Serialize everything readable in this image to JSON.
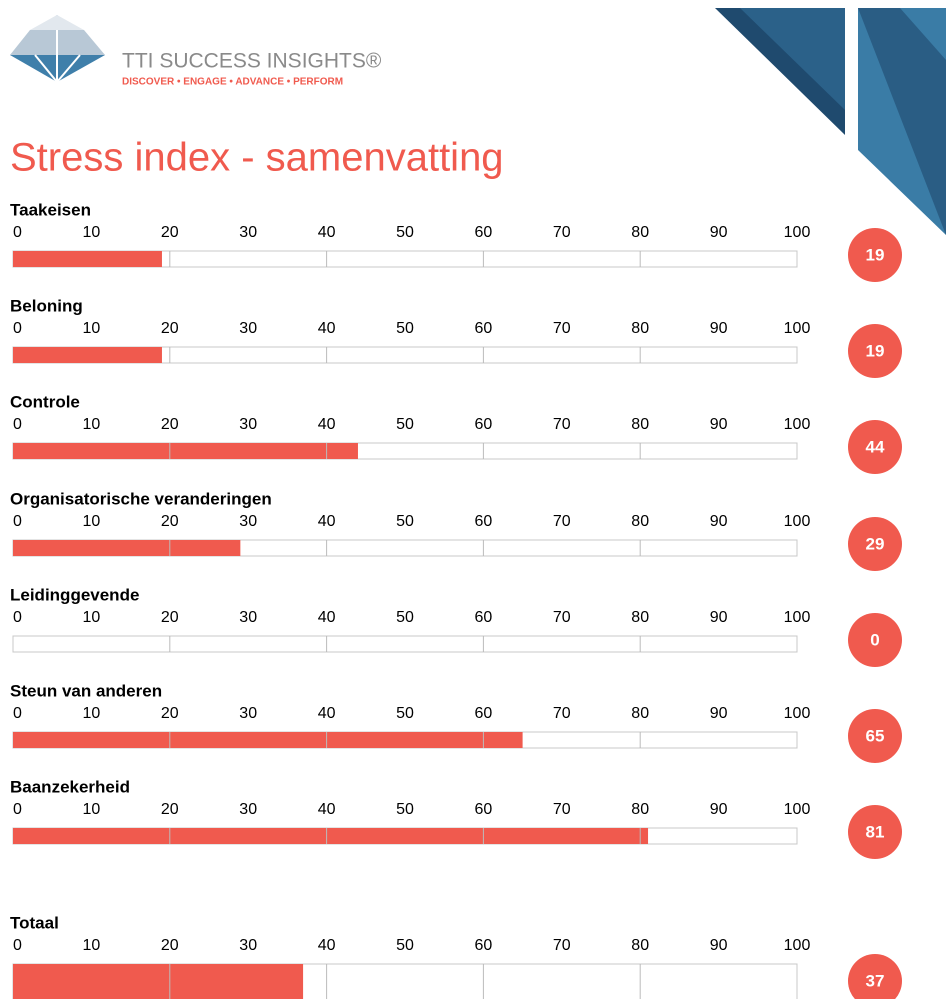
{
  "header": {
    "brand": "TTI SUCCESS INSIGHTS®",
    "tagline": "DISCOVER • ENGAGE • ADVANCE • PERFORM",
    "title": "Stress index - samenvatting"
  },
  "chart_data": [
    {
      "type": "gauge",
      "title": "Taakeisen",
      "values": [
        19
      ],
      "color": "#f05a4e",
      "xlim": [
        0,
        100
      ],
      "xticks": [
        0,
        10,
        20,
        30,
        40,
        50,
        60,
        70,
        80,
        90,
        100
      ],
      "xgrid": [
        20,
        40,
        60,
        80
      ]
    },
    {
      "type": "gauge",
      "title": "Beloning",
      "values": [
        19
      ],
      "color": "#f05a4e",
      "xlim": [
        0,
        100
      ],
      "xticks": [
        0,
        10,
        20,
        30,
        40,
        50,
        60,
        70,
        80,
        90,
        100
      ],
      "xgrid": [
        20,
        40,
        60,
        80
      ]
    },
    {
      "type": "gauge",
      "title": "Controle",
      "values": [
        44
      ],
      "color": "#f05a4e",
      "xlim": [
        0,
        100
      ],
      "xticks": [
        0,
        10,
        20,
        30,
        40,
        50,
        60,
        70,
        80,
        90,
        100
      ],
      "xgrid": [
        20,
        40,
        60,
        80
      ]
    },
    {
      "type": "gauge",
      "title": "Organisatorische veranderingen",
      "values": [
        29
      ],
      "color": "#f05a4e",
      "xlim": [
        0,
        100
      ],
      "xticks": [
        0,
        10,
        20,
        30,
        40,
        50,
        60,
        70,
        80,
        90,
        100
      ],
      "xgrid": [
        20,
        40,
        60,
        80
      ]
    },
    {
      "type": "gauge",
      "title": "Leidinggevende",
      "values": [
        0
      ],
      "color": "#f05a4e",
      "xlim": [
        0,
        100
      ],
      "xticks": [
        0,
        10,
        20,
        30,
        40,
        50,
        60,
        70,
        80,
        90,
        100
      ],
      "xgrid": [
        20,
        40,
        60,
        80
      ]
    },
    {
      "type": "gauge",
      "title": "Steun van anderen",
      "values": [
        65
      ],
      "color": "#f05a4e",
      "xlim": [
        0,
        100
      ],
      "xticks": [
        0,
        10,
        20,
        30,
        40,
        50,
        60,
        70,
        80,
        90,
        100
      ],
      "xgrid": [
        20,
        40,
        60,
        80
      ]
    },
    {
      "type": "gauge",
      "title": "Baanzekerheid",
      "values": [
        81
      ],
      "color": "#f05a4e",
      "xlim": [
        0,
        100
      ],
      "xticks": [
        0,
        10,
        20,
        30,
        40,
        50,
        60,
        70,
        80,
        90,
        100
      ],
      "xgrid": [
        20,
        40,
        60,
        80
      ]
    },
    {
      "type": "gauge",
      "title": "Totaal",
      "values": [
        37
      ],
      "color": "#f05a4e",
      "xlim": [
        0,
        100
      ],
      "xticks": [
        0,
        10,
        20,
        30,
        40,
        50,
        60,
        70,
        80,
        90,
        100
      ],
      "xgrid": [
        20,
        40,
        60,
        80
      ]
    }
  ]
}
